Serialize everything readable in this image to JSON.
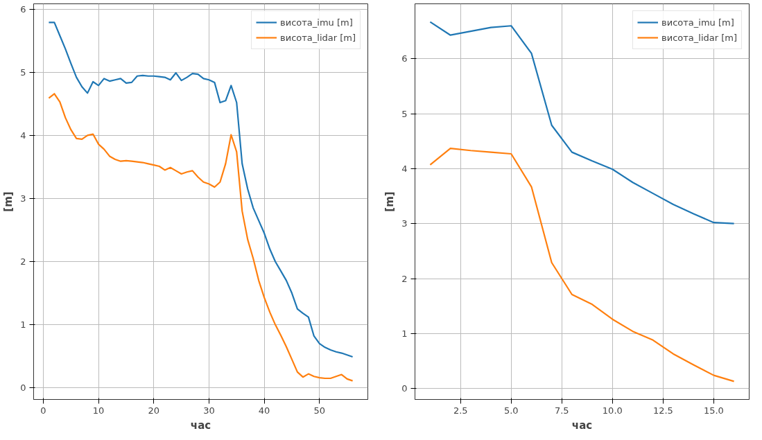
{
  "chart_data": [
    {
      "type": "line",
      "xlabel": "час",
      "ylabel": "[m]",
      "x": [
        1,
        2,
        3,
        4,
        5,
        6,
        7,
        8,
        9,
        10,
        11,
        12,
        13,
        14,
        15,
        16,
        17,
        18,
        19,
        20,
        21,
        22,
        23,
        24,
        25,
        26,
        27,
        28,
        29,
        30,
        31,
        32,
        33,
        34,
        35,
        36,
        37,
        38,
        39,
        40,
        41,
        42,
        43,
        44,
        45,
        46,
        47,
        48,
        49,
        50,
        51,
        52,
        53,
        54,
        55,
        56
      ],
      "series": [
        {
          "name": "висота_imu [m]",
          "color": "#1f77b4",
          "values": [
            5.79,
            5.79,
            5.58,
            5.37,
            5.14,
            4.92,
            4.77,
            4.67,
            4.85,
            4.79,
            4.9,
            4.86,
            4.88,
            4.9,
            4.83,
            4.84,
            4.94,
            4.95,
            4.94,
            4.94,
            4.93,
            4.92,
            4.88,
            4.99,
            4.87,
            4.92,
            4.98,
            4.97,
            4.9,
            4.88,
            4.84,
            4.52,
            4.55,
            4.79,
            4.52,
            3.55,
            3.15,
            2.85,
            2.65,
            2.45,
            2.2,
            2.0,
            1.85,
            1.7,
            1.5,
            1.25,
            1.18,
            1.12,
            0.82,
            0.7,
            0.64,
            0.6,
            0.57,
            0.55,
            0.52,
            0.49
          ]
        },
        {
          "name": "висота_lidar [m]",
          "color": "#ff7f0e",
          "values": [
            4.59,
            4.66,
            4.53,
            4.28,
            4.09,
            3.95,
            3.94,
            4.0,
            4.02,
            3.86,
            3.78,
            3.67,
            3.62,
            3.59,
            3.6,
            3.59,
            3.58,
            3.57,
            3.55,
            3.53,
            3.51,
            3.45,
            3.49,
            3.44,
            3.39,
            3.42,
            3.44,
            3.34,
            3.26,
            3.23,
            3.18,
            3.26,
            3.55,
            4.01,
            3.74,
            2.8,
            2.35,
            2.05,
            1.7,
            1.43,
            1.2,
            1.0,
            0.83,
            0.65,
            0.45,
            0.25,
            0.17,
            0.22,
            0.18,
            0.16,
            0.15,
            0.15,
            0.18,
            0.21,
            0.14,
            0.11
          ]
        }
      ],
      "xlim": [
        -1.75,
        58.75
      ],
      "ylim": [
        -0.185,
        6.085
      ],
      "xticks": [
        0,
        10,
        20,
        30,
        40,
        50
      ],
      "yticks": [
        0,
        1,
        2,
        3,
        4,
        5,
        6
      ],
      "grid": true,
      "legend": "top right"
    },
    {
      "type": "line",
      "xlabel": "час",
      "ylabel": "[m]",
      "x": [
        1,
        2,
        3,
        4,
        5,
        6,
        7,
        8,
        9,
        10,
        11,
        12,
        13,
        14,
        15,
        16
      ],
      "series": [
        {
          "name": "висота_imu [m]",
          "color": "#1f77b4",
          "values": [
            6.67,
            6.43,
            6.5,
            6.57,
            6.6,
            6.1,
            4.79,
            4.3,
            4.14,
            3.99,
            3.75,
            3.55,
            3.35,
            3.18,
            3.02,
            3.0
          ]
        },
        {
          "name": "висота_lidar [m]",
          "color": "#ff7f0e",
          "values": [
            4.07,
            4.37,
            4.33,
            4.3,
            4.27,
            3.67,
            2.29,
            1.71,
            1.53,
            1.26,
            1.04,
            0.88,
            0.63,
            0.43,
            0.24,
            0.13
          ]
        }
      ],
      "xlim": [
        0.25,
        16.75
      ],
      "ylim": [
        -0.2,
        7.0
      ],
      "xticks": [
        {
          "value": 2.5,
          "label": "2.5"
        },
        {
          "value": 5,
          "label": "5.0"
        },
        {
          "value": 7.5,
          "label": "7.5"
        },
        {
          "value": 10,
          "label": "10.0"
        },
        {
          "value": 12.5,
          "label": "12.5"
        },
        {
          "value": 15,
          "label": "15.0"
        }
      ],
      "yticks": [
        0,
        1,
        2,
        3,
        4,
        5,
        6
      ],
      "grid": true,
      "legend": "top right"
    }
  ]
}
